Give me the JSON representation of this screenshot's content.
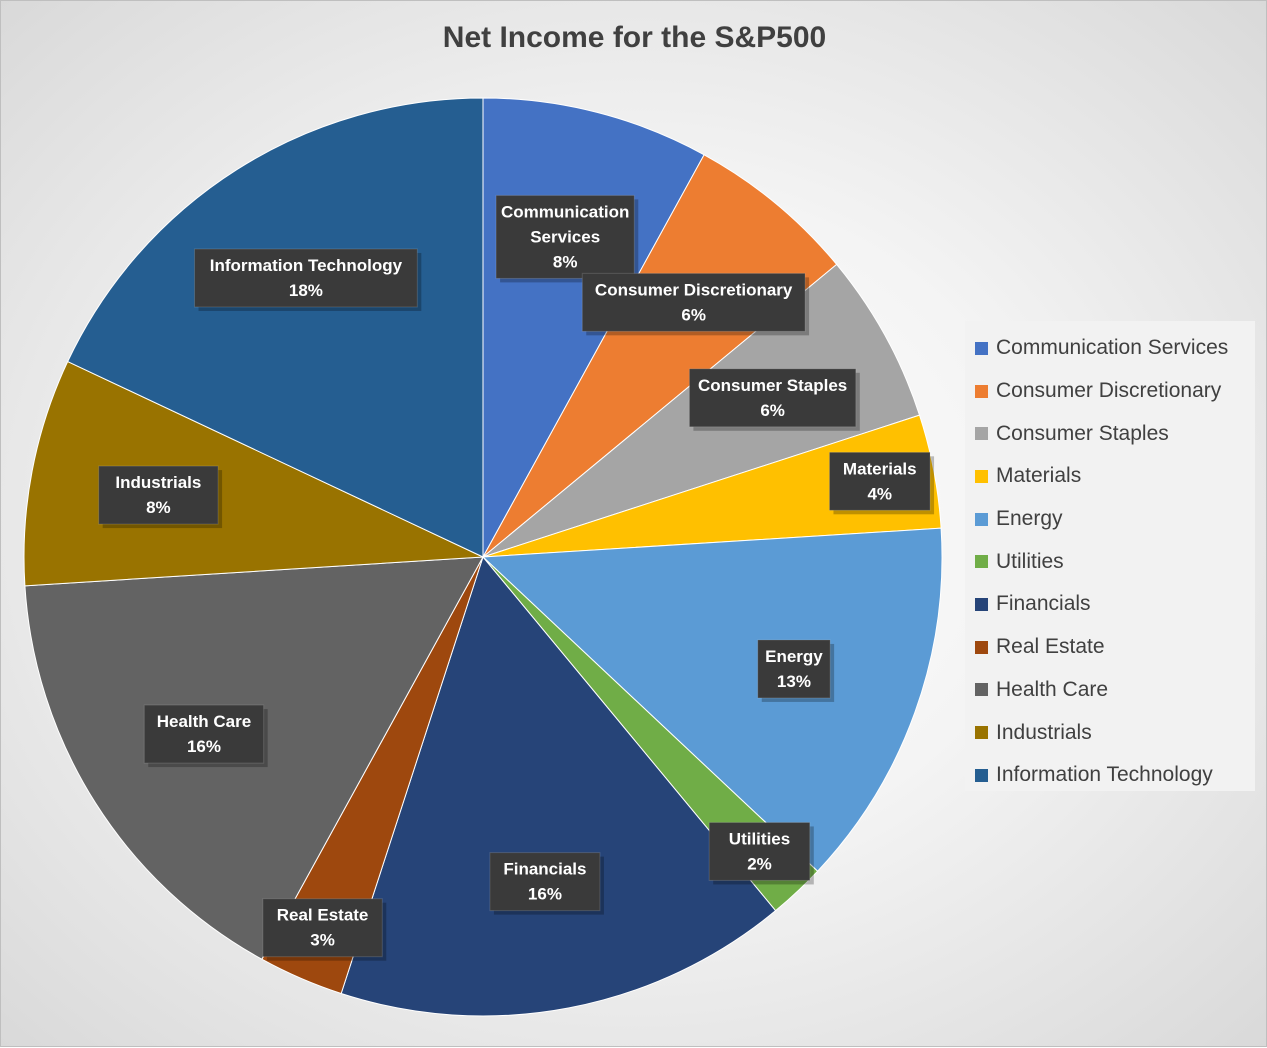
{
  "chart_data": {
    "type": "pie",
    "title": "Net Income for the S&P500",
    "legend_position": "right",
    "label_format": "category name and percentage",
    "slices": [
      {
        "label": "Communication Services",
        "value": 8,
        "value_label": "8%",
        "color": "#4472C4"
      },
      {
        "label": "Consumer Discretionary",
        "value": 6,
        "value_label": "6%",
        "color": "#ED7D31"
      },
      {
        "label": "Consumer Staples",
        "value": 6,
        "value_label": "6%",
        "color": "#A5A5A5"
      },
      {
        "label": "Materials",
        "value": 4,
        "value_label": "4%",
        "color": "#FFC000"
      },
      {
        "label": "Energy",
        "value": 13,
        "value_label": "13%",
        "color": "#5B9BD5"
      },
      {
        "label": "Utilities",
        "value": 2,
        "value_label": "2%",
        "color": "#70AD47"
      },
      {
        "label": "Financials",
        "value": 16,
        "value_label": "16%",
        "color": "#264478"
      },
      {
        "label": "Real Estate",
        "value": 3,
        "value_label": "3%",
        "color": "#9E480E"
      },
      {
        "label": "Health Care",
        "value": 16,
        "value_label": "16%",
        "color": "#636363"
      },
      {
        "label": "Industrials",
        "value": 8,
        "value_label": "8%",
        "color": "#997300"
      },
      {
        "label": "Information Technology",
        "value": 18,
        "value_label": "18%",
        "color": "#255E91"
      }
    ]
  }
}
